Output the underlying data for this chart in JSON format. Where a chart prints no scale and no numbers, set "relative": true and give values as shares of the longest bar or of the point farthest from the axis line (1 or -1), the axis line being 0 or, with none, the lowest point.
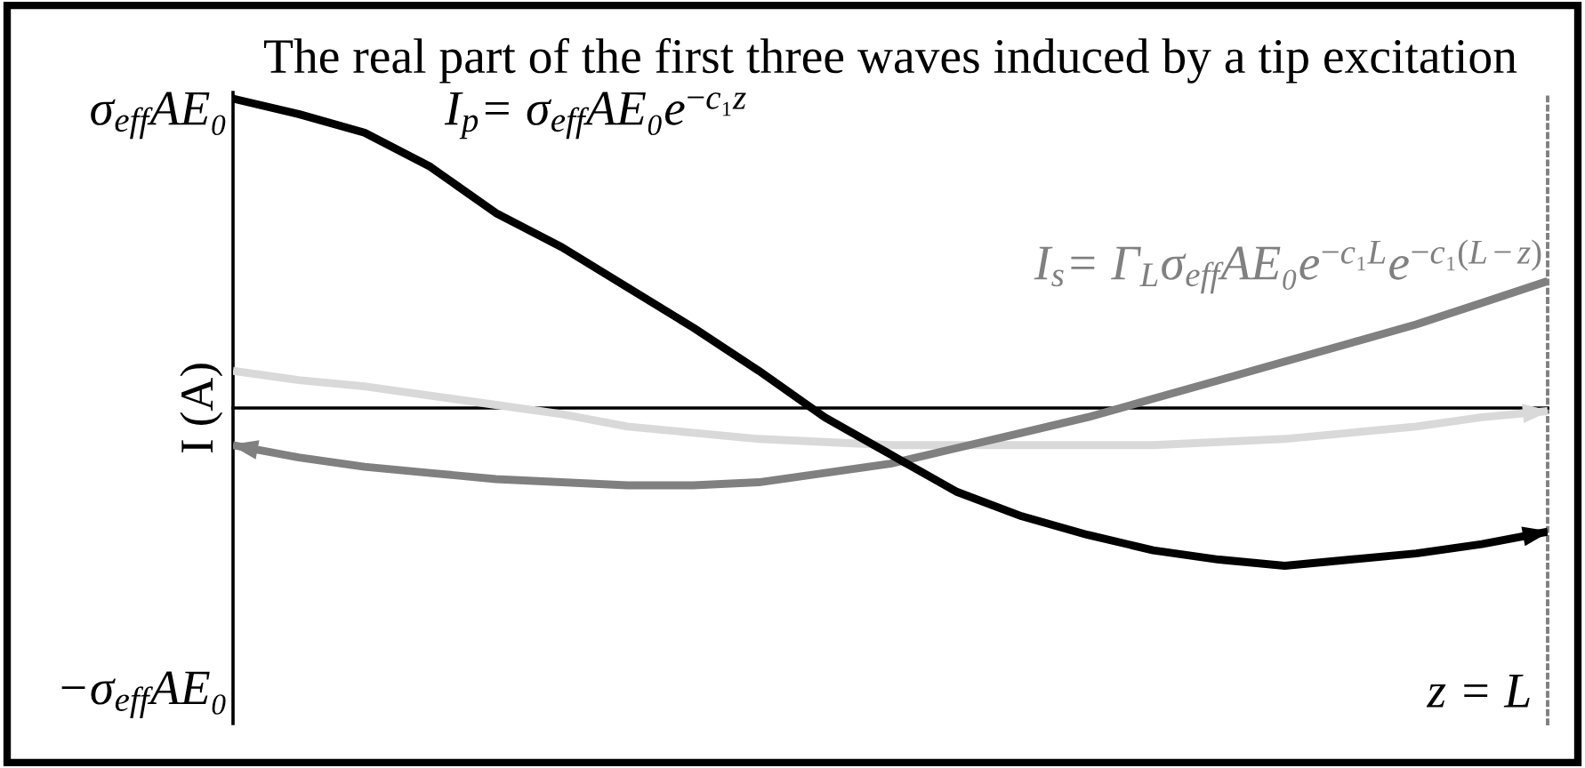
{
  "chart_data": {
    "type": "line",
    "relative": true,
    "title": "The real part of the first three waves induced by a tip excitation",
    "ylabel": "I (A)",
    "categories": [
      null,
      null,
      null,
      null,
      null,
      null,
      null,
      null,
      null,
      null,
      null,
      null,
      null,
      null,
      null,
      null,
      null,
      null,
      null,
      null,
      null
    ],
    "series": [
      {
        "name": "I$_{p}$= σ$_{eff}$AE₀e$^{−c₁z}$",
        "color": "#000000",
        "values": [
          1.0,
          0.95,
          0.89,
          0.78,
          0.63,
          0.52,
          0.39,
          0.26,
          0.12,
          -0.03,
          -0.15,
          -0.27,
          -0.35,
          -0.41,
          -0.46,
          -0.49,
          -0.51,
          -0.49,
          -0.47,
          -0.44,
          -0.4
        ]
      },
      {
        "name": "I$_{s}$= Γ$_{L}$σ$_{eff}$AE₀e$^{−c₁L}$e$^{−c₁(L−z)}$",
        "color": "#808080",
        "values": [
          -0.12,
          -0.16,
          -0.19,
          -0.21,
          -0.23,
          -0.24,
          -0.25,
          -0.25,
          -0.24,
          -0.21,
          -0.18,
          -0.13,
          -0.08,
          -0.03,
          0.03,
          0.09,
          0.15,
          0.21,
          0.27,
          0.34,
          0.41
        ]
      },
      {
        "color": "#d9d9d9",
        "values": [
          0.12,
          0.09,
          0.07,
          0.04,
          0.01,
          -0.02,
          -0.06,
          -0.08,
          -0.1,
          -0.11,
          -0.12,
          -0.12,
          -0.12,
          -0.12,
          -0.12,
          -0.11,
          -0.1,
          -0.08,
          -0.06,
          -0.03,
          -0.01
        ]
      }
    ],
    "annotations": [
      "σ$_{eff}$AE₀",
      "−σ$_{eff}$AE₀",
      "z = L"
    ]
  }
}
